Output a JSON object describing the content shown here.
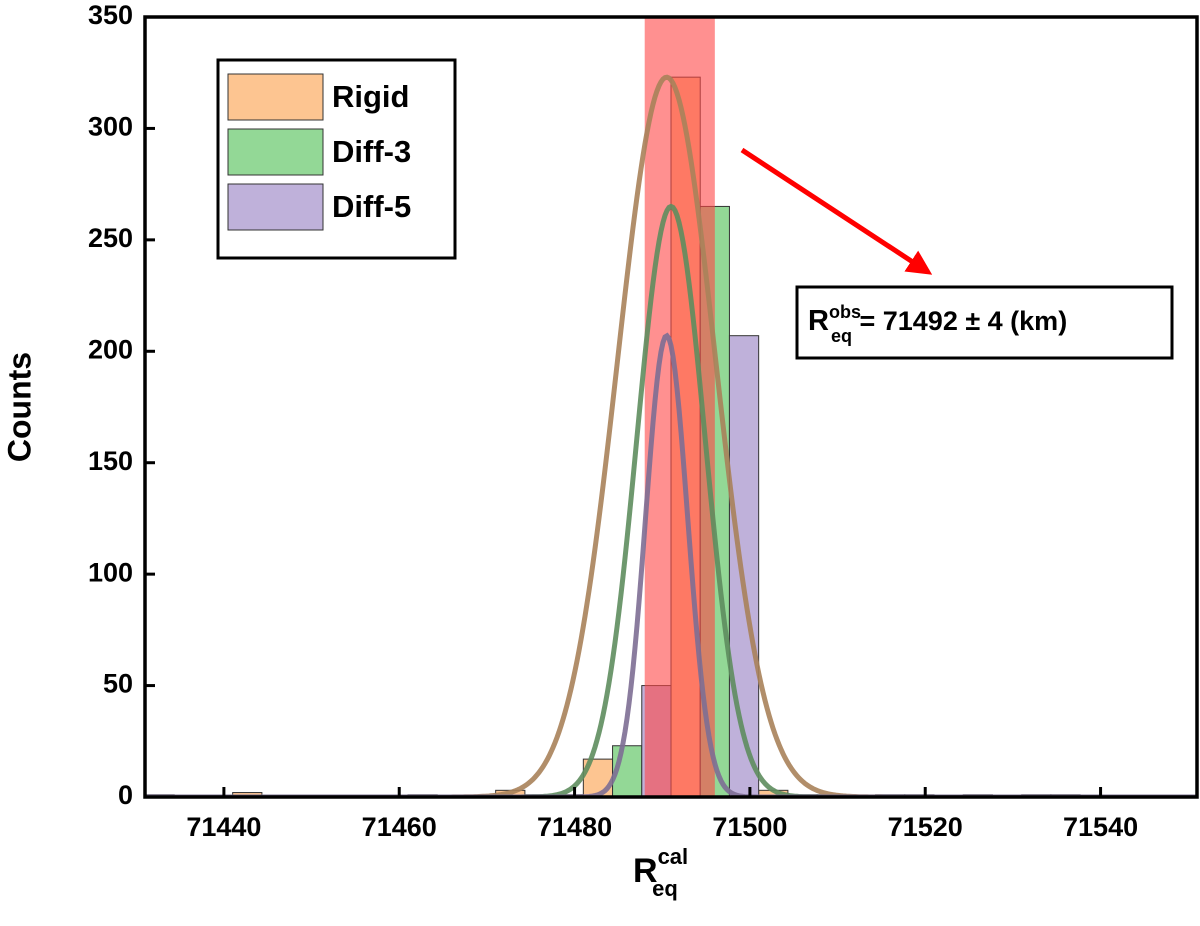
{
  "chart_data": {
    "type": "histogram",
    "x_label": {
      "main": "R",
      "sub": "eq",
      "sup": "cal"
    },
    "y_label": "Counts",
    "bins": [
      71431,
      71441,
      71451,
      71461,
      71471,
      71481,
      71491,
      71501,
      71511,
      71521,
      71531,
      71541,
      71551
    ],
    "series": [
      {
        "name": "Rigid",
        "color": "#fdc591",
        "values": [
          1,
          2,
          0,
          1,
          3,
          17,
          323,
          3,
          0,
          0,
          1,
          0
        ],
        "fit": {
          "center": 71490.5,
          "sigma": 5.6,
          "peak": 323,
          "color": "#a9825a"
        }
      },
      {
        "name": "Diff-3",
        "color": "#93d896",
        "values": [
          0,
          0,
          0,
          0,
          1,
          23,
          265,
          1,
          1,
          1,
          1,
          0
        ],
        "fit": {
          "center": 71491,
          "sigma": 3.9,
          "peak": 265,
          "color": "#5e8d5e"
        }
      },
      {
        "name": "Diff-5",
        "color": "#bfb1da",
        "values": [
          0,
          0,
          0,
          0,
          1,
          50,
          207,
          1,
          1,
          0,
          0,
          0
        ],
        "fit": {
          "center": 71490.5,
          "sigma": 2.4,
          "peak": 207,
          "color": "#7d6e93"
        }
      }
    ],
    "observed": {
      "value": 71492,
      "error": 4,
      "color": "#ff4646",
      "label": {
        "main": "R",
        "sub": "eq",
        "sup": "obs",
        "rest": " = 71492 ± 4 (km)"
      }
    },
    "xlim": [
      71431,
      71551
    ],
    "xticks": [
      71440,
      71460,
      71480,
      71500,
      71520,
      71540
    ],
    "ylim": [
      0,
      350
    ],
    "yticks": [
      0,
      50,
      100,
      150,
      200,
      250,
      300,
      350
    ],
    "legend": "upper left"
  }
}
